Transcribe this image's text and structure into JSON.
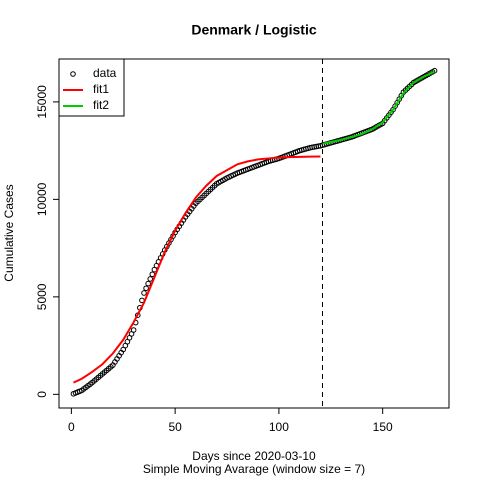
{
  "chart_data": {
    "type": "scatter-fit",
    "title": "Denmark / Logistic",
    "xlabel": "Days since 2020-03-10",
    "subtitle": "Simple Moving Avarage (window size = 7)",
    "ylabel": "Cumulative Cases",
    "xlim": [
      -5.96,
      181.96
    ],
    "ylim": [
      -700,
      17200
    ],
    "xticks": [
      0,
      50,
      100,
      150
    ],
    "yticks": [
      0,
      5000,
      10000,
      15000
    ],
    "vline": 121,
    "legend": "top-left",
    "series": [
      {
        "name": "data",
        "color": "#000000",
        "marker": "circle",
        "x": [
          1,
          2,
          3,
          4,
          5,
          6,
          7,
          8,
          9,
          10,
          11,
          12,
          13,
          14,
          15,
          16,
          17,
          18,
          19,
          20,
          21,
          22,
          23,
          24,
          25,
          26,
          27,
          28,
          29,
          30,
          31,
          32,
          33,
          34,
          35,
          36,
          37,
          38,
          39,
          40,
          41,
          42,
          43,
          44,
          45,
          46,
          47,
          48,
          49,
          50,
          51,
          52,
          53,
          54,
          55,
          56,
          57,
          58,
          59,
          60,
          61,
          62,
          63,
          64,
          65,
          66,
          67,
          68,
          69,
          70,
          71,
          72,
          73,
          74,
          75,
          76,
          77,
          78,
          79,
          80,
          81,
          82,
          83,
          84,
          85,
          86,
          87,
          88,
          89,
          90,
          91,
          92,
          93,
          94,
          95,
          96,
          97,
          98,
          99,
          100,
          101,
          102,
          103,
          104,
          105,
          106,
          107,
          108,
          109,
          110,
          111,
          112,
          113,
          114,
          115,
          116,
          117,
          118,
          119,
          120,
          121,
          122,
          123,
          124,
          125,
          126,
          127,
          128,
          129,
          130,
          131,
          132,
          133,
          134,
          135,
          136,
          137,
          138,
          139,
          140,
          141,
          142,
          143,
          144,
          145,
          146,
          147,
          148,
          149,
          150,
          151,
          152,
          153,
          154,
          155,
          156,
          157,
          158,
          159,
          160,
          161,
          162,
          163,
          164,
          165,
          166,
          167,
          168,
          169,
          170,
          171,
          172,
          173,
          174,
          175
        ],
        "values": [
          30,
          73,
          115,
          158,
          200,
          280,
          360,
          440,
          520,
          600,
          690,
          780,
          870,
          960,
          1050,
          1140,
          1230,
          1320,
          1410,
          1500,
          1660,
          1820,
          1980,
          2140,
          2300,
          2500,
          2700,
          2900,
          3100,
          3300,
          3680,
          4060,
          4440,
          4820,
          5200,
          5440,
          5680,
          5920,
          6160,
          6400,
          6600,
          6800,
          7000,
          7200,
          7400,
          7580,
          7760,
          7940,
          8120,
          8300,
          8460,
          8620,
          8780,
          8940,
          9100,
          9240,
          9380,
          9520,
          9660,
          9800,
          9900,
          10000,
          10100,
          10200,
          10300,
          10400,
          10500,
          10600,
          10700,
          10800,
          10860,
          10920,
          10980,
          11040,
          11100,
          11150,
          11200,
          11250,
          11300,
          11350,
          11390,
          11430,
          11470,
          11510,
          11550,
          11590,
          11630,
          11670,
          11710,
          11750,
          11790,
          11830,
          11870,
          11910,
          11950,
          11980,
          12010,
          12040,
          12070,
          12100,
          12140,
          12180,
          12220,
          12260,
          12300,
          12340,
          12380,
          12420,
          12460,
          12500,
          12530,
          12560,
          12590,
          12620,
          12650,
          12670,
          12690,
          12710,
          12730,
          12750,
          12780,
          12810,
          12840,
          12870,
          12900,
          12930,
          12960,
          12990,
          13020,
          13050,
          13080,
          13110,
          13140,
          13170,
          13200,
          13240,
          13280,
          13320,
          13360,
          13400,
          13440,
          13480,
          13520,
          13560,
          13600,
          13660,
          13720,
          13780,
          13840,
          13900,
          14040,
          14180,
          14320,
          14460,
          14600,
          14780,
          14960,
          15140,
          15320,
          15500,
          15600,
          15700,
          15800,
          15900,
          16000,
          16060,
          16120,
          16180,
          16240,
          16300,
          16360,
          16420,
          16480,
          16540,
          16600
        ]
      },
      {
        "name": "fit1",
        "color": "#ff0000",
        "marker": "line",
        "x": [
          1,
          5,
          10,
          15,
          20,
          25,
          30,
          35,
          40,
          45,
          50,
          55,
          60,
          65,
          70,
          75,
          80,
          85,
          90,
          95,
          100,
          105,
          110,
          115,
          120
        ],
        "values": [
          600,
          800,
          1150,
          1550,
          2100,
          2800,
          3700,
          4700,
          6000,
          7300,
          8400,
          9300,
          10100,
          10700,
          11200,
          11500,
          11800,
          11950,
          12050,
          12100,
          12150,
          12170,
          12180,
          12190,
          12200
        ]
      },
      {
        "name": "fit2",
        "color": "#00cd00",
        "marker": "line",
        "x": [
          121,
          125,
          130,
          135,
          140,
          145,
          150,
          155,
          160,
          165,
          170,
          175
        ],
        "values": [
          12850,
          12950,
          13050,
          13200,
          13350,
          13600,
          13950,
          14600,
          15450,
          16000,
          16300,
          16550
        ]
      }
    ]
  }
}
